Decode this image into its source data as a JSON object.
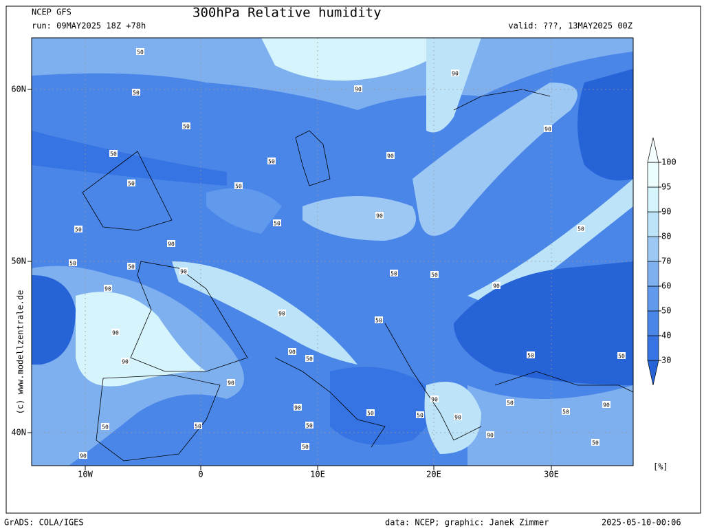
{
  "header": {
    "model": "NCEP GFS",
    "run": "run: 09MAY2025 18Z +78h",
    "title": "300hPa Relative humidity",
    "valid": "valid: ???, 13MAY2025 00Z"
  },
  "map": {
    "lat_labels": [
      "60N",
      "50N",
      "40N"
    ],
    "lon_labels": [
      "10W",
      "0",
      "10E",
      "20E",
      "30E"
    ],
    "contour_labels": [
      "50",
      "50",
      "50",
      "50",
      "50",
      "50",
      "50",
      "50",
      "50",
      "50",
      "50",
      "90",
      "90",
      "90",
      "90",
      "90",
      "90",
      "90",
      "50",
      "90",
      "50",
      "50",
      "50",
      "90",
      "90",
      "90",
      "90",
      "90",
      "50",
      "90",
      "50",
      "50",
      "50",
      "50",
      "90",
      "50",
      "90",
      "50",
      "90",
      "50",
      "50",
      "50",
      "90",
      "50",
      "50",
      "90",
      "90"
    ]
  },
  "watermark": "(c) www.modellzentrale.de",
  "colorbar": {
    "ticks": [
      30,
      40,
      50,
      60,
      70,
      80,
      90,
      95,
      100
    ],
    "unit": "[%]",
    "colors": [
      "#2563d6",
      "#3574e2",
      "#4a86e8",
      "#6199ec",
      "#7eafef",
      "#9dc8f4",
      "#bde3f8",
      "#d6f4fb",
      "#ecfdfe"
    ]
  },
  "footer": {
    "software": "GrADS: COLA/IGES",
    "credit": "data: NCEP; graphic: Janek Zimmer",
    "timestamp": "2025-05-10-00:06"
  }
}
